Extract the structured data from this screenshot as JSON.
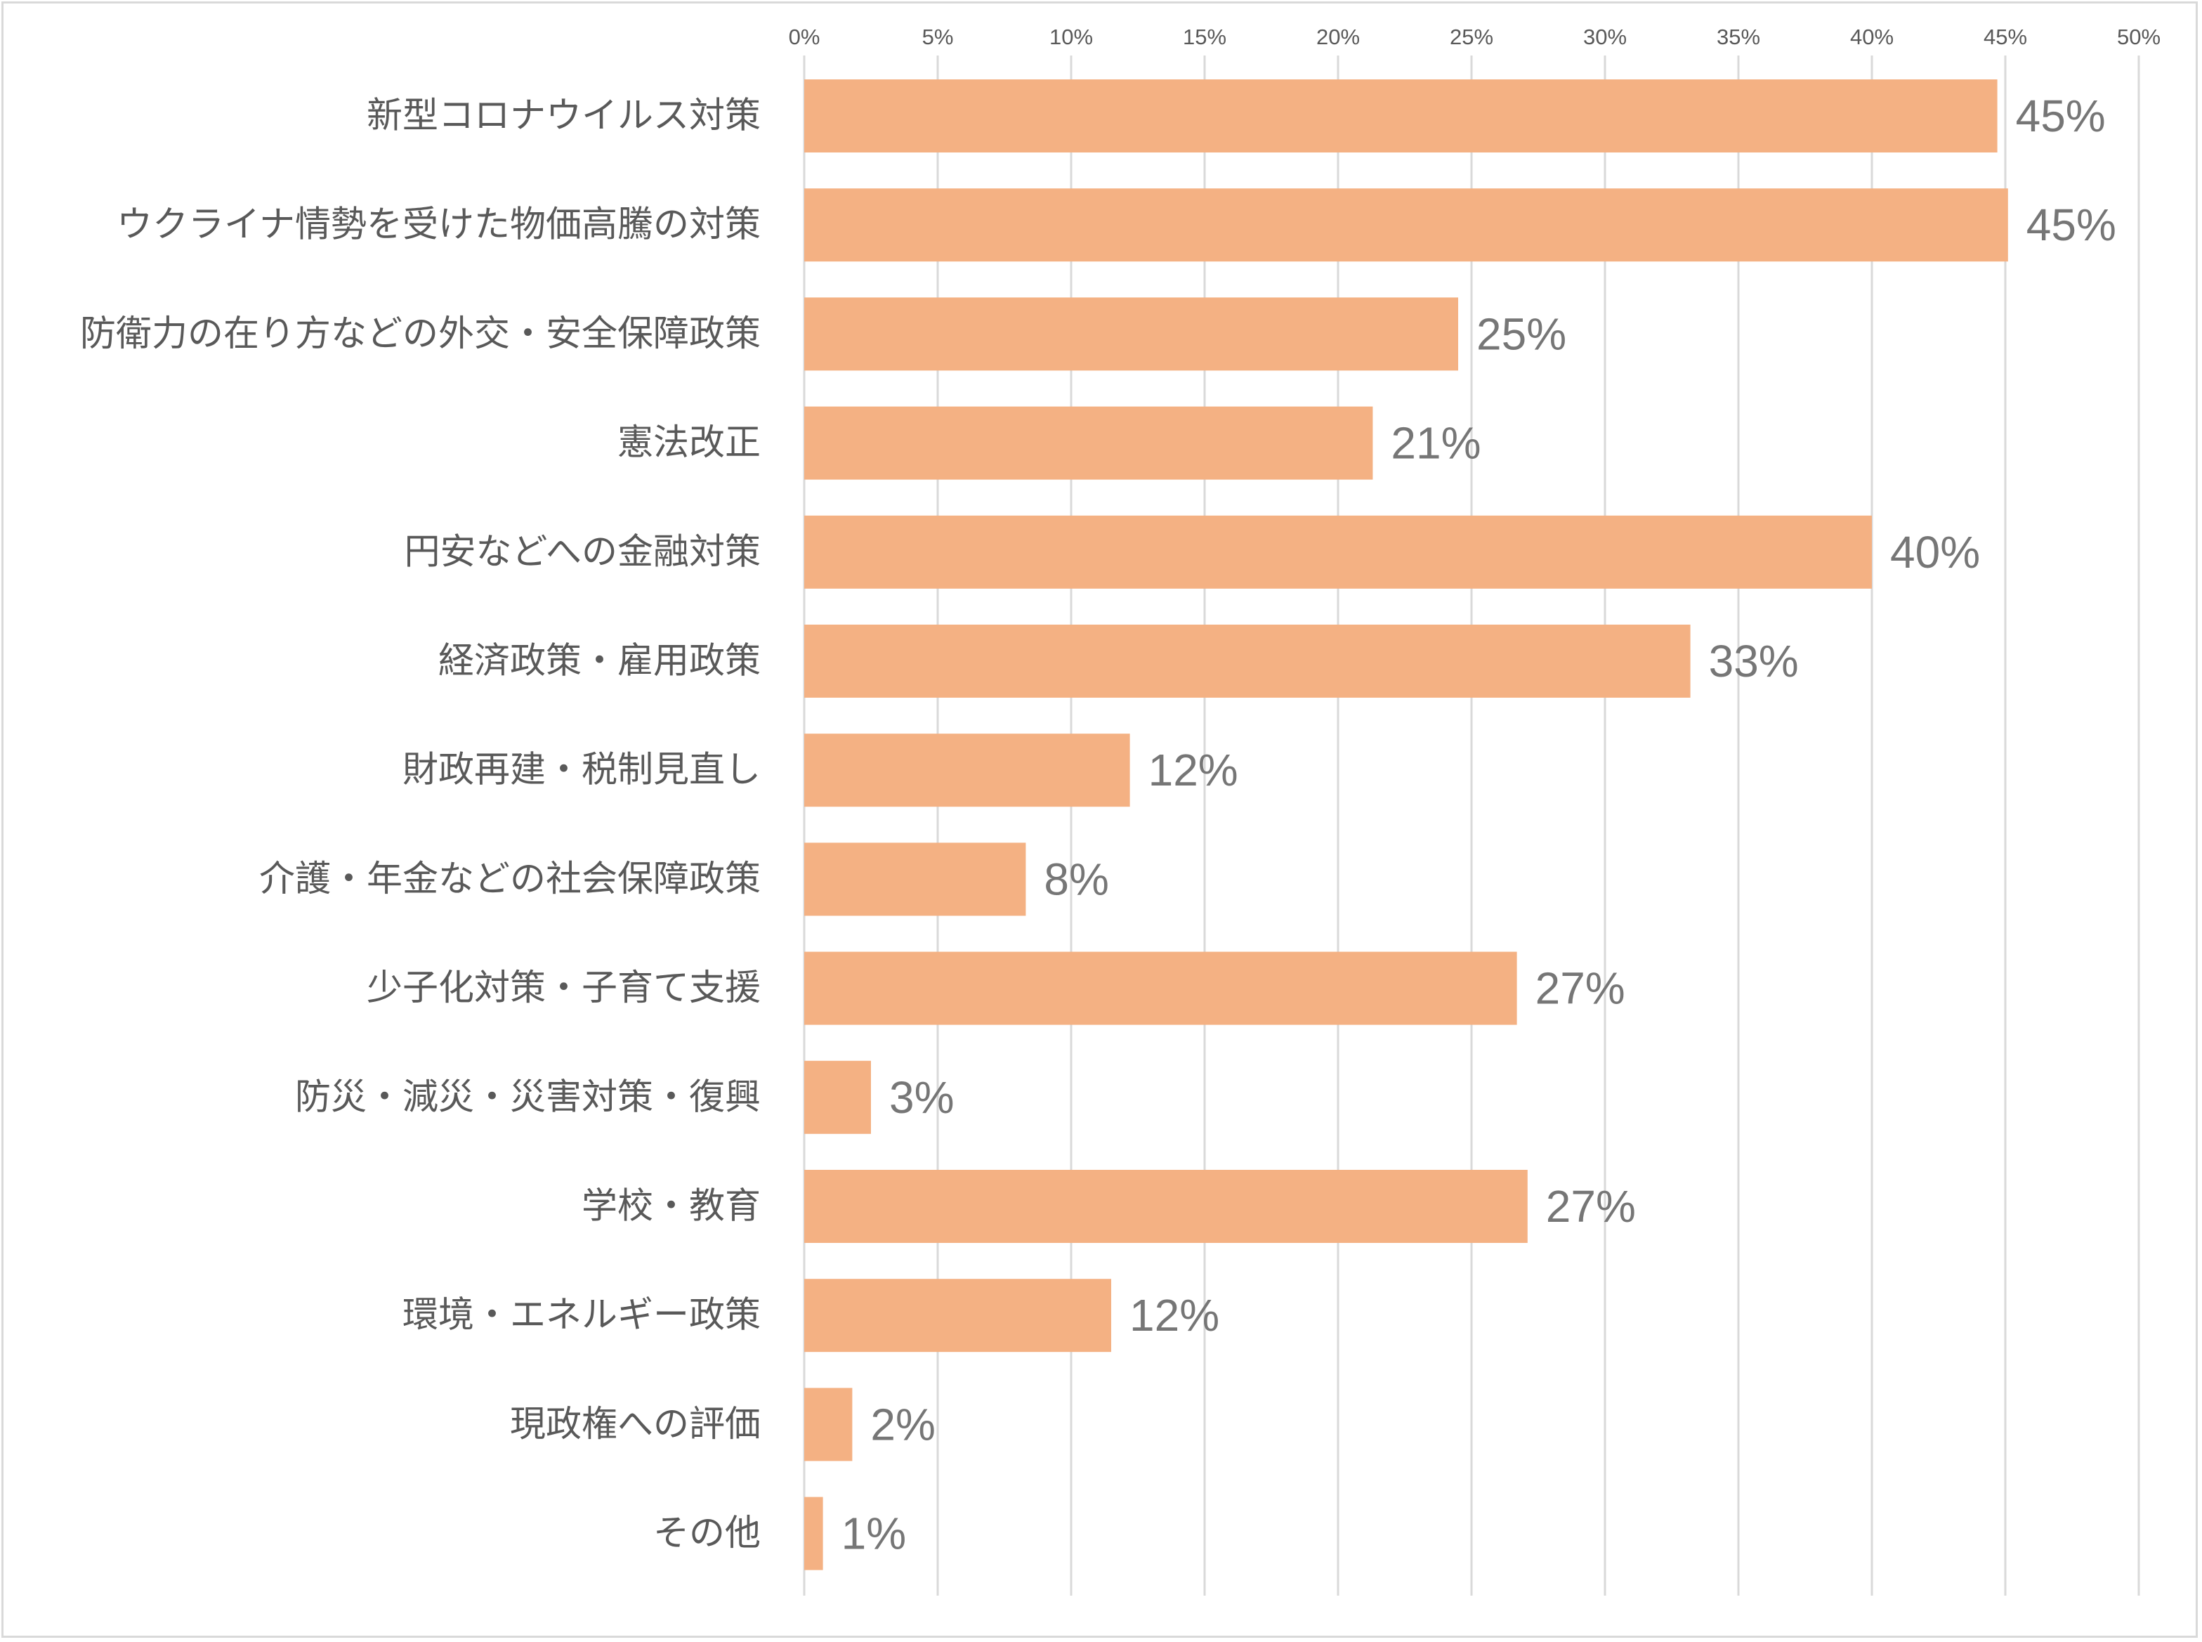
{
  "chart_data": {
    "type": "bar",
    "orientation": "horizontal",
    "title": "",
    "xlabel": "",
    "ylabel": "",
    "xlim": [
      0,
      50
    ],
    "x_ticks": [
      "0%",
      "5%",
      "10%",
      "15%",
      "20%",
      "25%",
      "30%",
      "35%",
      "40%",
      "45%",
      "50%"
    ],
    "x_axis_position": "top",
    "grid": true,
    "legend": "none",
    "bar_color": "#f4b183",
    "categories": [
      "新型コロナウイルス対策",
      "ウクライナ情勢を受けた物価高騰の対策",
      "防衛力の在り方などの外交・安全保障政策",
      "憲法改正",
      "円安などへの金融対策",
      "経済政策・雇用政策",
      "財政再建・税制見直し",
      "介護・年金などの社会保障政策",
      "少子化対策・子育て支援",
      "防災・減災・災害対策・復興",
      "学校・教育",
      "環境・エネルギー政策",
      "現政権への評価",
      "その他"
    ],
    "values": [
      44.7,
      45.1,
      24.5,
      21.3,
      40.0,
      33.2,
      12.2,
      8.3,
      26.7,
      2.5,
      27.1,
      11.5,
      1.8,
      0.7
    ],
    "data_labels": [
      "45%",
      "45%",
      "25%",
      "21%",
      "40%",
      "33%",
      "12%",
      "8%",
      "27%",
      "3%",
      "27%",
      "12%",
      "2%",
      "1%"
    ]
  }
}
